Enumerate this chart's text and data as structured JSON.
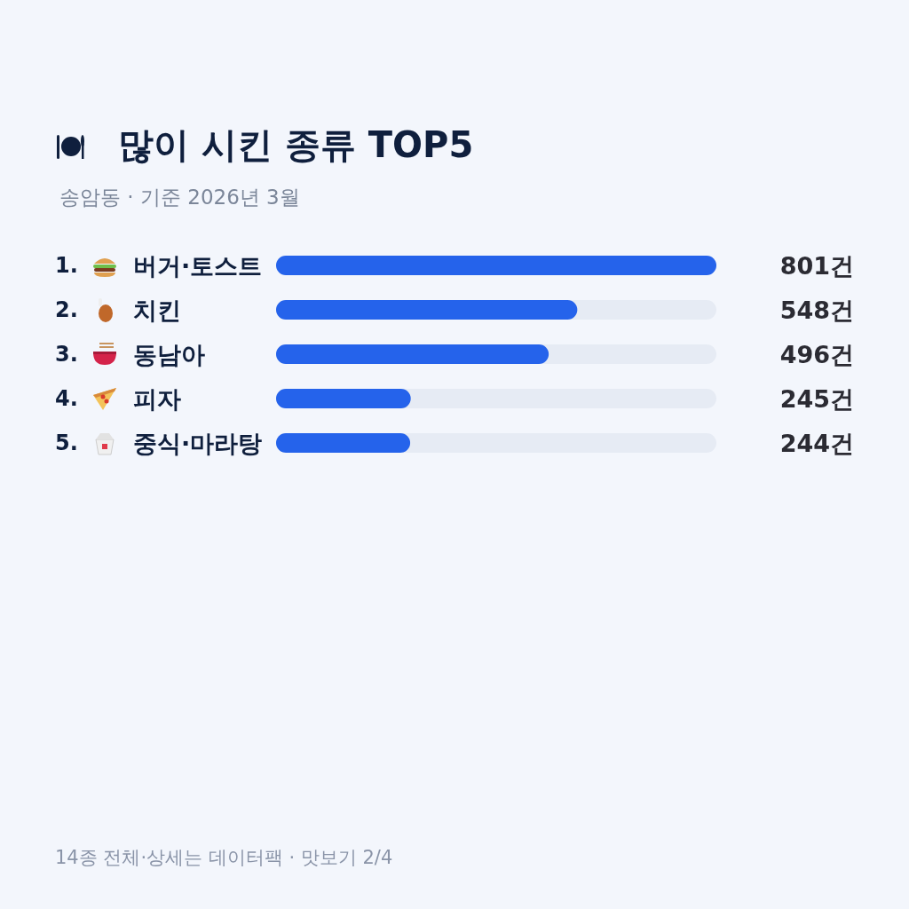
{
  "chart_data": {
    "type": "bar",
    "orientation": "horizontal",
    "title": "많이 시킨 종류 TOP5",
    "subtitle": "송암동 · 기준 2026년 3월",
    "categories": [
      "1. 버거·토스트",
      "2. 치킨",
      "3. 동남아",
      "4. 피자",
      "5. 중식·마라탕"
    ],
    "values": [
      801,
      548,
      496,
      245,
      244
    ],
    "value_labels": [
      "801건",
      "548건",
      "496건",
      "245건",
      "244건"
    ],
    "color": "#2563eb",
    "annotations": [
      "14종 전체·상세는 데이터팩 · 맛보기 2/4"
    ]
  }
}
